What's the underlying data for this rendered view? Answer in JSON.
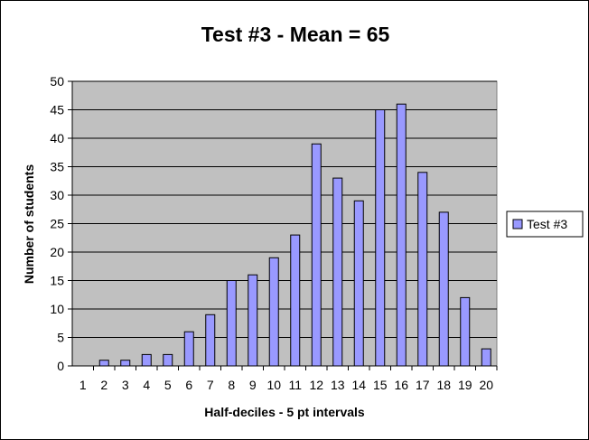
{
  "chart_data": {
    "type": "bar",
    "title": "Test #3 - Mean = 65",
    "xlabel": "Half-deciles - 5 pt intervals",
    "ylabel": "Number of students",
    "categories": [
      "1",
      "2",
      "3",
      "4",
      "5",
      "6",
      "7",
      "8",
      "9",
      "10",
      "11",
      "12",
      "13",
      "14",
      "15",
      "16",
      "17",
      "18",
      "19",
      "20"
    ],
    "series": [
      {
        "name": "Test #3",
        "values": [
          0,
          1,
          1,
          2,
          2,
          6,
          9,
          15,
          16,
          19,
          23,
          39,
          33,
          29,
          45,
          46,
          34,
          27,
          12,
          3
        ],
        "color": "#9999ff"
      }
    ],
    "ylim": [
      0,
      50
    ],
    "yticks": [
      0,
      5,
      10,
      15,
      20,
      25,
      30,
      35,
      40,
      45,
      50
    ],
    "grid": true,
    "plot_background": "#c0c0c0",
    "legend_position": "right"
  }
}
